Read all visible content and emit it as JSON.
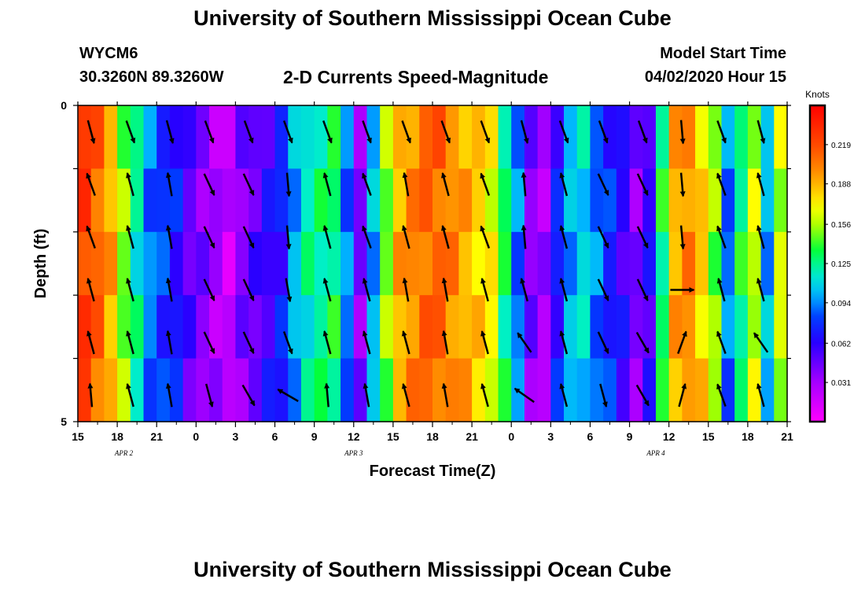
{
  "page": {
    "title_top": "University of Southern Mississippi Ocean Cube",
    "title_bottom": "University of Southern Mississippi Ocean Cube",
    "station_id": "WYCM6",
    "station_coords": "30.3260N 89.3260W",
    "subtitle": "2-D Currents Speed-Magnitude",
    "start_label": "Model Start Time",
    "start_value": "04/02/2020 Hour 15"
  },
  "chart_data": {
    "type": "heatmap",
    "title": "2-D Currents Speed-Magnitude",
    "xlabel": "Forecast Time(Z)",
    "ylabel": "Depth (ft)",
    "x_ticks": [
      "15",
      "18",
      "21",
      "0",
      "3",
      "6",
      "9",
      "12",
      "15",
      "18",
      "21",
      "0",
      "3",
      "6",
      "9",
      "12",
      "15",
      "18",
      "21"
    ],
    "x_range_hours": [
      0,
      54
    ],
    "y_range_ft": [
      0,
      5
    ],
    "y_ticks": [
      0,
      5
    ],
    "y_tick_labels": [
      "0",
      "5"
    ],
    "date_labels": [
      {
        "text": "APR 2",
        "hour": 3.5
      },
      {
        "text": "APR 3",
        "hour": 21
      },
      {
        "text": "APR 4",
        "hour": 44
      }
    ],
    "colorbar": {
      "label": "Knots",
      "min": 0.0,
      "max": 0.25,
      "ticks": [
        0.031,
        0.062,
        0.094,
        0.125,
        0.156,
        0.188,
        0.219
      ],
      "tick_labels": [
        "0.031",
        "0.062",
        "0.094",
        "0.125",
        "0.156",
        "0.188",
        "0.219"
      ]
    },
    "depth_rows": 5,
    "speed_knots_by_hour": [
      0.225,
      0.21,
      0.19,
      0.15,
      0.12,
      0.09,
      0.08,
      0.07,
      0.05,
      0.04,
      0.03,
      0.02,
      0.04,
      0.05,
      0.06,
      0.07,
      0.1,
      0.12,
      0.125,
      0.13,
      0.09,
      0.04,
      0.1,
      0.15,
      0.19,
      0.2,
      0.21,
      0.21,
      0.2,
      0.19,
      0.18,
      0.17,
      0.13,
      0.09,
      0.04,
      0.03,
      0.07,
      0.1,
      0.11,
      0.09,
      0.075,
      0.06,
      0.04,
      0.06,
      0.13,
      0.19,
      0.2,
      0.18,
      0.15,
      0.09,
      0.13,
      0.16,
      0.1,
      0.16
    ],
    "vector_hours": [
      1,
      4,
      7,
      10,
      13,
      16,
      19,
      22,
      25,
      28,
      31,
      34,
      37,
      40,
      43,
      46,
      49,
      52
    ],
    "vector_directions_deg": [
      [
        165,
        160,
        165,
        160,
        160,
        160,
        160,
        160,
        160,
        160,
        160,
        165,
        160,
        160,
        160,
        175,
        160,
        165
      ],
      [
        340,
        345,
        350,
        155,
        155,
        175,
        345,
        340,
        350,
        345,
        340,
        355,
        345,
        155,
        155,
        175,
        340,
        345
      ],
      [
        340,
        345,
        350,
        155,
        155,
        175,
        345,
        340,
        345,
        345,
        340,
        355,
        345,
        155,
        155,
        175,
        340,
        345
      ],
      [
        345,
        345,
        350,
        155,
        155,
        170,
        345,
        345,
        350,
        350,
        345,
        345,
        345,
        155,
        155,
        90,
        345,
        345
      ],
      [
        345,
        345,
        350,
        155,
        155,
        160,
        345,
        345,
        345,
        350,
        345,
        325,
        345,
        155,
        150,
        20,
        340,
        325
      ],
      [
        355,
        345,
        350,
        165,
        150,
        300,
        355,
        350,
        345,
        350,
        345,
        305,
        345,
        165,
        150,
        15,
        340,
        345
      ]
    ]
  }
}
